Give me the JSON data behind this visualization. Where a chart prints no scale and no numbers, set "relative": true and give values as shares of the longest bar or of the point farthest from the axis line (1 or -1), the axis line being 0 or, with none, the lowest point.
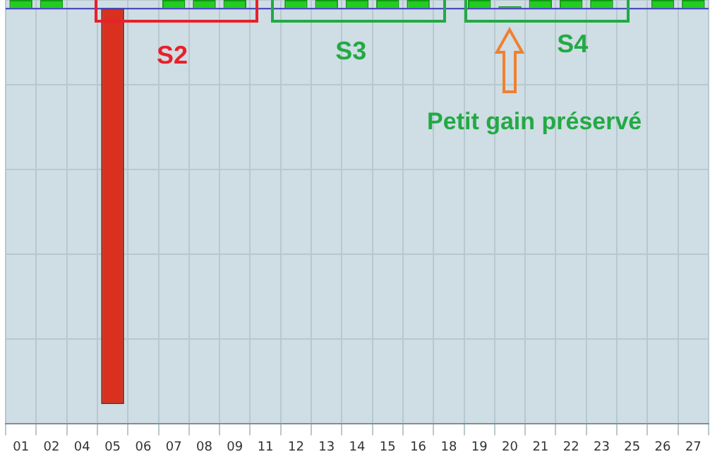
{
  "chart_data": {
    "type": "bar",
    "relative": true,
    "grid": true,
    "legend": false,
    "categories": [
      "01",
      "02",
      "04",
      "05",
      "06",
      "07",
      "08",
      "09",
      "11",
      "12",
      "13",
      "14",
      "15",
      "16",
      "18",
      "19",
      "20",
      "21",
      "22",
      "23",
      "25",
      "26",
      "27"
    ],
    "values": [
      0.02,
      0.02,
      0,
      -1,
      0,
      0.02,
      0.02,
      0.02,
      0,
      0.02,
      0.02,
      0.02,
      0.02,
      0.02,
      0,
      0.02,
      0.004,
      0.02,
      0.02,
      0.02,
      0,
      0.02,
      0.02
    ],
    "colors": [
      "#22cc22",
      "#22cc22",
      "#22cc22",
      "#d9301f",
      "#22cc22",
      "#22cc22",
      "#22cc22",
      "#22cc22",
      "#22cc22",
      "#22cc22",
      "#22cc22",
      "#22cc22",
      "#22cc22",
      "#22cc22",
      "#22cc22",
      "#22cc22",
      "#22cc22",
      "#22cc22",
      "#22cc22",
      "#22cc22",
      "#22cc22",
      "#22cc22",
      "#22cc22"
    ],
    "ref_lines": [
      {
        "axis": "y",
        "value": 0,
        "color": "#3b3bb8"
      }
    ],
    "annotations": [
      "S2",
      "S3",
      "S4",
      "Petit gain préservé"
    ]
  }
}
